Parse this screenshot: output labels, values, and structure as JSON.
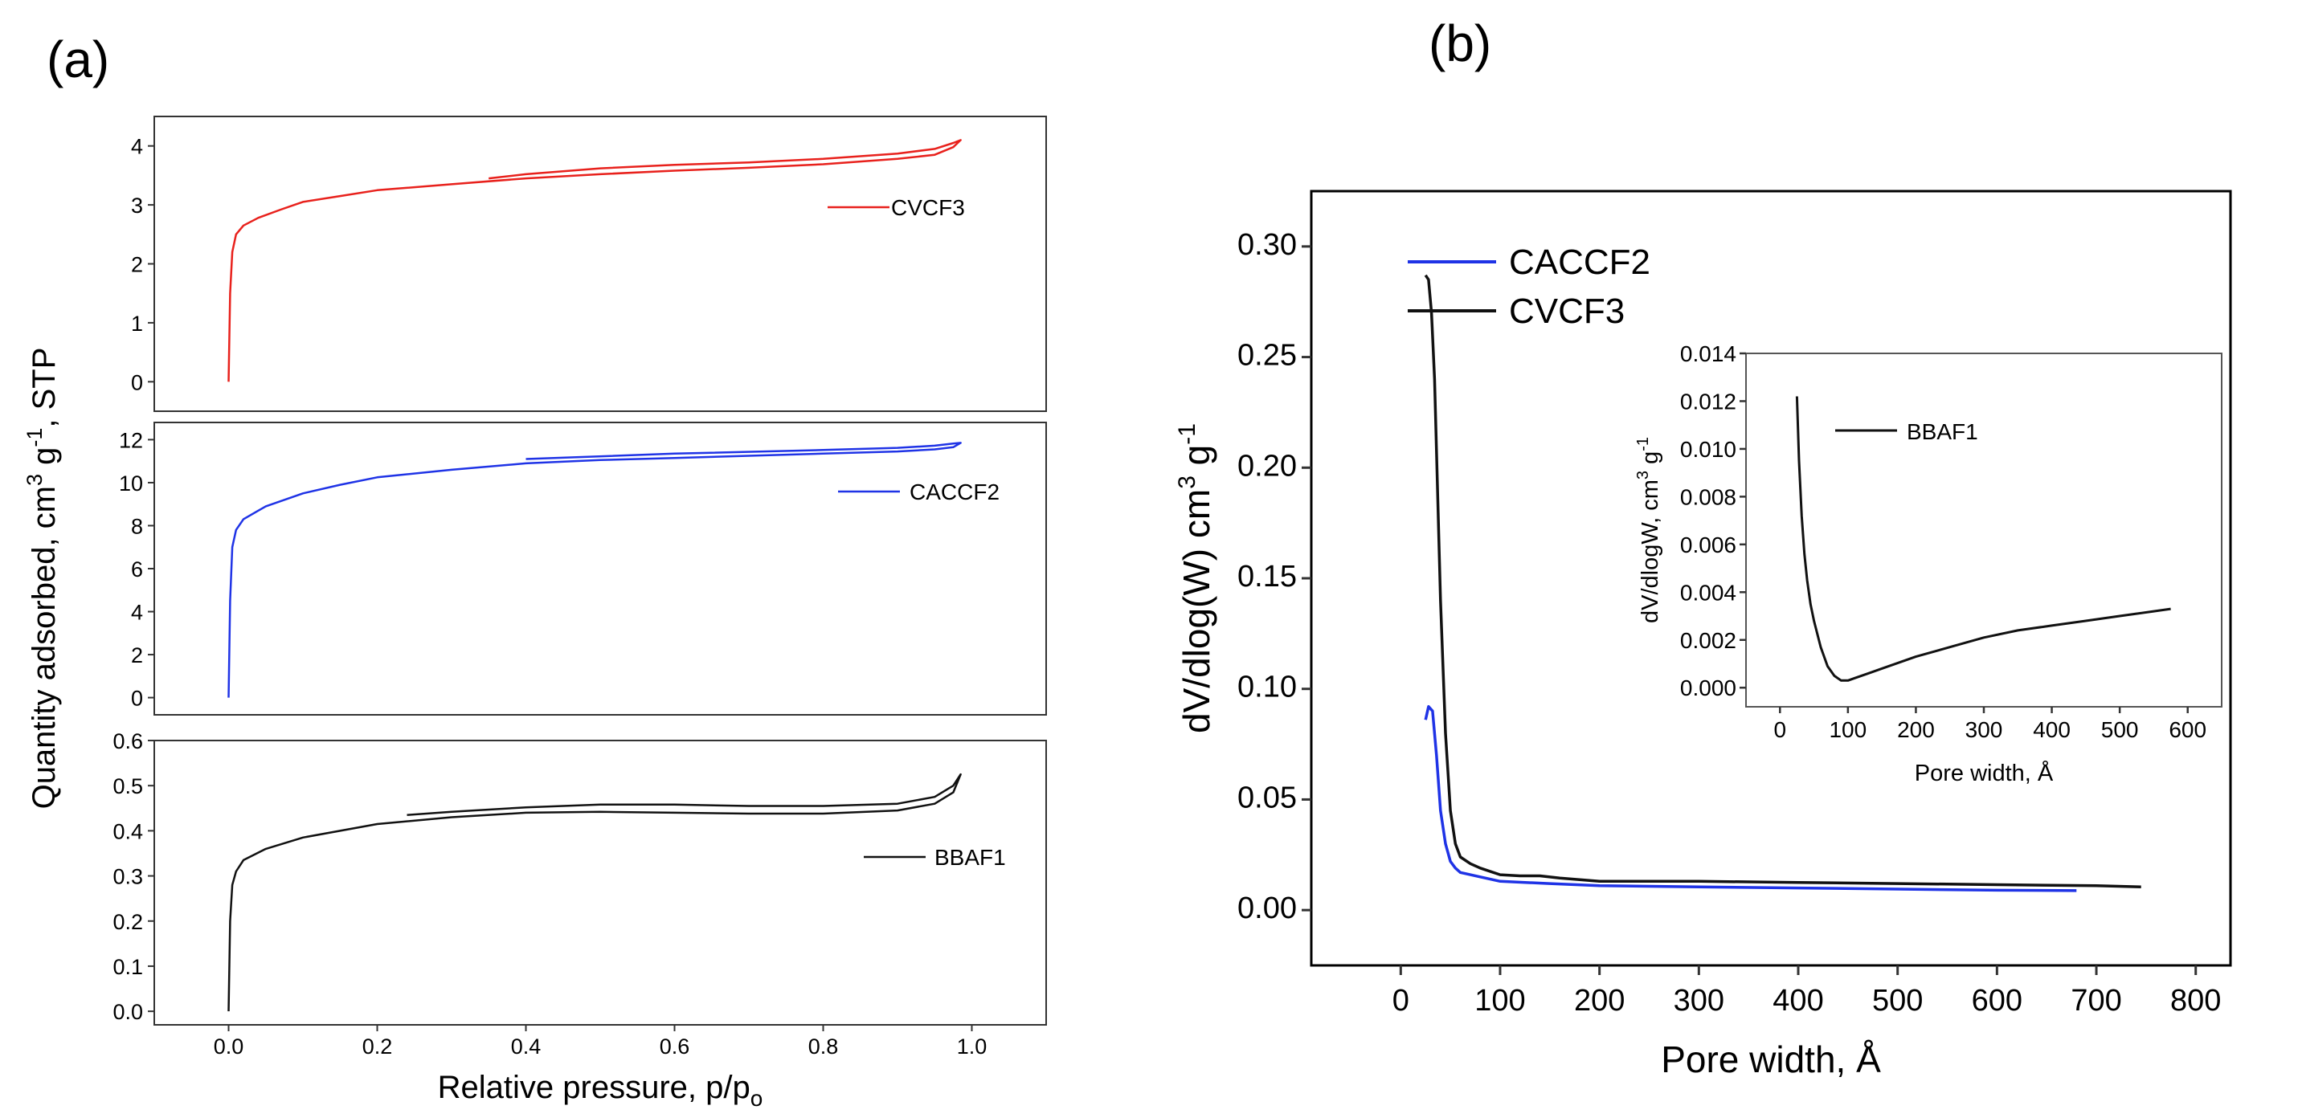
{
  "panels": {
    "a_label": "(a)",
    "b_label": "(b)"
  },
  "chart_data": [
    {
      "id": "a-top",
      "type": "line",
      "title": "",
      "xlabel": "",
      "ylabel": "",
      "xlim": [
        -0.1,
        1.1
      ],
      "ylim": [
        -0.5,
        4.5
      ],
      "yticks": [
        0,
        1,
        2,
        3,
        4
      ],
      "ytick_labels": [
        "0",
        "1",
        "2",
        "3",
        "4"
      ],
      "series": [
        {
          "name": "CVCF3",
          "color": "#e8211c",
          "x": [
            0.0,
            0.002,
            0.005,
            0.01,
            0.02,
            0.04,
            0.07,
            0.1,
            0.15,
            0.2,
            0.3,
            0.4,
            0.5,
            0.6,
            0.7,
            0.8,
            0.9,
            0.95,
            0.975,
            0.985,
            0.975,
            0.95,
            0.9,
            0.8,
            0.7,
            0.6,
            0.5,
            0.4,
            0.35
          ],
          "y": [
            0.0,
            1.5,
            2.2,
            2.5,
            2.65,
            2.78,
            2.92,
            3.05,
            3.15,
            3.25,
            3.35,
            3.45,
            3.52,
            3.58,
            3.63,
            3.69,
            3.78,
            3.85,
            3.98,
            4.1,
            4.05,
            3.95,
            3.87,
            3.78,
            3.72,
            3.68,
            3.62,
            3.52,
            3.45
          ]
        }
      ]
    },
    {
      "id": "a-mid",
      "type": "line",
      "title": "",
      "xlabel": "",
      "ylabel": "",
      "xlim": [
        -0.1,
        1.1
      ],
      "ylim": [
        -0.8,
        12.8
      ],
      "yticks": [
        0,
        2,
        4,
        6,
        8,
        10,
        12
      ],
      "ytick_labels": [
        "0",
        "2",
        "4",
        "6",
        "8",
        "10",
        "12"
      ],
      "series": [
        {
          "name": "CACCF2",
          "color": "#1f33e6",
          "x": [
            0.0,
            0.002,
            0.005,
            0.01,
            0.02,
            0.05,
            0.1,
            0.15,
            0.2,
            0.3,
            0.4,
            0.5,
            0.6,
            0.7,
            0.8,
            0.9,
            0.95,
            0.975,
            0.985,
            0.975,
            0.95,
            0.9,
            0.8,
            0.6,
            0.4
          ],
          "y": [
            0.0,
            4.5,
            7.0,
            7.8,
            8.3,
            8.9,
            9.5,
            9.9,
            10.25,
            10.6,
            10.9,
            11.05,
            11.15,
            11.25,
            11.35,
            11.45,
            11.55,
            11.65,
            11.85,
            11.82,
            11.72,
            11.62,
            11.52,
            11.35,
            11.1
          ]
        }
      ]
    },
    {
      "id": "a-bot",
      "type": "line",
      "title": "",
      "xlabel": "Relative pressure, p/p",
      "xlabel_sub": "o",
      "ylabel": "Quantity adsorbed, cm",
      "ylabel_sup1": "3",
      "ylabel_mid": " g",
      "ylabel_sup2": "-1",
      "ylabel_end": ", STP",
      "xlim": [
        -0.1,
        1.1
      ],
      "ylim": [
        -0.03,
        0.6
      ],
      "xticks": [
        0.0,
        0.2,
        0.4,
        0.6,
        0.8,
        1.0
      ],
      "xtick_labels": [
        "0.0",
        "0.2",
        "0.4",
        "0.6",
        "0.8",
        "1.0"
      ],
      "yticks": [
        0.0,
        0.1,
        0.2,
        0.3,
        0.4,
        0.5,
        0.6
      ],
      "ytick_labels": [
        "0.0",
        "0.1",
        "0.2",
        "0.3",
        "0.4",
        "0.5",
        "0.6"
      ],
      "series": [
        {
          "name": "BBAF1",
          "color": "#111111",
          "x": [
            0.0,
            0.002,
            0.005,
            0.01,
            0.02,
            0.05,
            0.1,
            0.2,
            0.3,
            0.4,
            0.5,
            0.6,
            0.7,
            0.8,
            0.9,
            0.95,
            0.975,
            0.985,
            0.975,
            0.95,
            0.9,
            0.8,
            0.7,
            0.6,
            0.5,
            0.4,
            0.3,
            0.24
          ],
          "y": [
            0.0,
            0.2,
            0.28,
            0.31,
            0.335,
            0.36,
            0.385,
            0.415,
            0.43,
            0.44,
            0.442,
            0.44,
            0.438,
            0.438,
            0.445,
            0.46,
            0.485,
            0.525,
            0.5,
            0.475,
            0.46,
            0.455,
            0.455,
            0.458,
            0.458,
            0.452,
            0.442,
            0.435
          ]
        }
      ]
    },
    {
      "id": "b-main",
      "type": "line",
      "title": "",
      "xlabel": "Pore width, Å",
      "ylabel": "dV/dlog(W) cm",
      "ylabel_sup1": "3",
      "ylabel_mid": " g",
      "ylabel_sup2": "-1",
      "xlim": [
        -90,
        835
      ],
      "ylim": [
        -0.025,
        0.325
      ],
      "xticks": [
        0,
        100,
        200,
        300,
        400,
        500,
        600,
        700,
        800
      ],
      "xtick_labels": [
        "0",
        "100",
        "200",
        "300",
        "400",
        "500",
        "600",
        "700",
        "800"
      ],
      "yticks": [
        0.0,
        0.05,
        0.1,
        0.15,
        0.2,
        0.25,
        0.3
      ],
      "ytick_labels": [
        "0.00",
        "0.05",
        "0.10",
        "0.15",
        "0.20",
        "0.25",
        "0.30"
      ],
      "series": [
        {
          "name": "CACCF2",
          "color": "#1f33e6",
          "x": [
            25,
            28,
            32,
            36,
            40,
            45,
            50,
            55,
            60,
            70,
            80,
            100,
            150,
            200,
            300,
            400,
            500,
            600,
            680
          ],
          "y": [
            0.086,
            0.092,
            0.09,
            0.07,
            0.045,
            0.03,
            0.022,
            0.019,
            0.017,
            0.016,
            0.015,
            0.013,
            0.012,
            0.011,
            0.0105,
            0.01,
            0.0095,
            0.009,
            0.0088
          ]
        },
        {
          "name": "CVCF3",
          "color": "#111111",
          "x": [
            25,
            28,
            31,
            34,
            37,
            40,
            45,
            50,
            55,
            60,
            70,
            80,
            100,
            120,
            140,
            160,
            200,
            300,
            400,
            500,
            600,
            700,
            745
          ],
          "y": [
            0.287,
            0.285,
            0.27,
            0.24,
            0.19,
            0.14,
            0.08,
            0.045,
            0.03,
            0.024,
            0.021,
            0.019,
            0.016,
            0.0155,
            0.0155,
            0.0145,
            0.013,
            0.013,
            0.0125,
            0.012,
            0.0115,
            0.011,
            0.0105
          ]
        }
      ]
    },
    {
      "id": "b-inset",
      "type": "line",
      "title": "",
      "xlabel": "Pore width, Å",
      "ylabel": "dV/dlogW, cm",
      "ylabel_sup1": "3",
      "ylabel_mid": " g",
      "ylabel_sup2": "-1",
      "xlim": [
        -50,
        650
      ],
      "ylim": [
        -0.0008,
        0.014
      ],
      "xticks": [
        0,
        100,
        200,
        300,
        400,
        500,
        600
      ],
      "xtick_labels": [
        "0",
        "100",
        "200",
        "300",
        "400",
        "500",
        "600"
      ],
      "yticks": [
        0.0,
        0.002,
        0.004,
        0.006,
        0.008,
        0.01,
        0.012,
        0.014
      ],
      "ytick_labels": [
        "0.000",
        "0.002",
        "0.004",
        "0.006",
        "0.008",
        "0.010",
        "0.012",
        "0.014"
      ],
      "series": [
        {
          "name": "BBAF1",
          "color": "#111111",
          "x": [
            25,
            28,
            32,
            36,
            40,
            45,
            50,
            60,
            70,
            80,
            90,
            100,
            110,
            130,
            150,
            200,
            250,
            300,
            350,
            400,
            450,
            500,
            550,
            575
          ],
          "y": [
            0.0122,
            0.0095,
            0.0072,
            0.0056,
            0.0045,
            0.0035,
            0.0028,
            0.0017,
            0.0009,
            0.0005,
            0.0003,
            0.0003,
            0.0004,
            0.0006,
            0.0008,
            0.0013,
            0.0017,
            0.0021,
            0.0024,
            0.0026,
            0.0028,
            0.003,
            0.0032,
            0.0033
          ]
        }
      ]
    }
  ]
}
